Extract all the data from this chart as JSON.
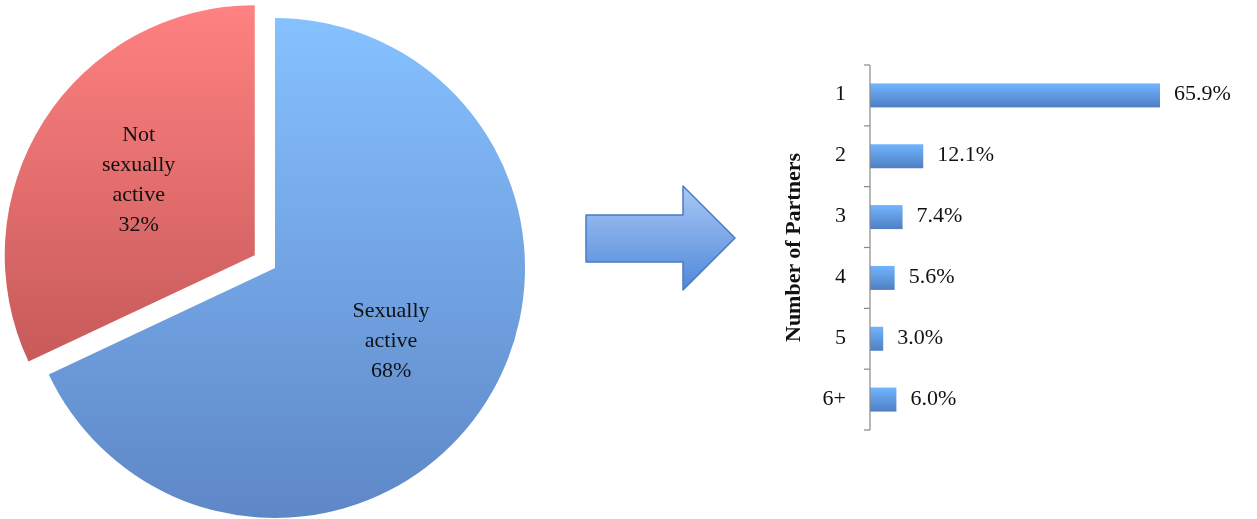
{
  "chart_data": [
    {
      "type": "pie",
      "categories": [
        "Sexually active",
        "Not sexually active"
      ],
      "values": [
        68,
        32
      ],
      "value_labels": [
        "68%",
        "32%"
      ],
      "colors": [
        "#6c9ce6",
        "#e56868"
      ]
    },
    {
      "type": "bar",
      "orientation": "horizontal",
      "ylabel": "Number of Partners",
      "categories": [
        "1",
        "2",
        "3",
        "4",
        "5",
        "6+"
      ],
      "values": [
        65.9,
        12.1,
        7.4,
        5.6,
        3.0,
        6.0
      ],
      "color": "#5b92e0",
      "value_labels": [
        "65.9%",
        "12.1%",
        "7.4%",
        "5.6%",
        "3.0%",
        "6.0%"
      ]
    }
  ]
}
